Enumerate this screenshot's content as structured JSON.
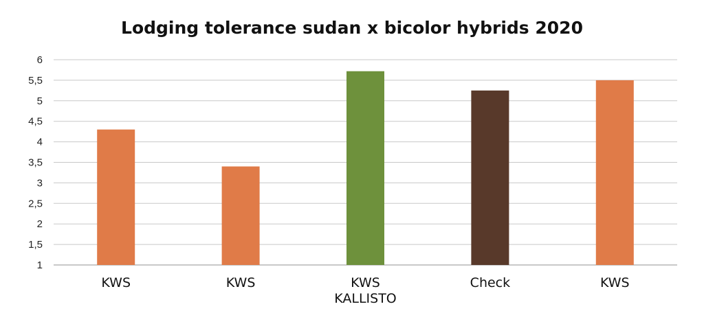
{
  "chart_data": {
    "type": "bar",
    "title": "Lodging tolerance sudan x bicolor hybrids 2020",
    "xlabel": "",
    "ylabel": "",
    "categories": [
      [
        "KWS"
      ],
      [
        "KWS"
      ],
      [
        "KWS",
        "KALLISTO"
      ],
      [
        "Check"
      ],
      [
        "KWS"
      ]
    ],
    "values": [
      4.3,
      3.4,
      5.72,
      5.25,
      5.5
    ],
    "bar_colors": [
      "#E07B48",
      "#E07B48",
      "#6E913C",
      "#58392A",
      "#E07B48"
    ],
    "ylim": [
      1,
      6
    ],
    "yticks": [
      "1",
      "1,5",
      "2",
      "2,5",
      "3",
      "3,5",
      "4",
      "4,5",
      "5",
      "5,5",
      "6"
    ],
    "ytick_values": [
      1,
      1.5,
      2,
      2.5,
      3,
      3.5,
      4,
      4.5,
      5,
      5.5,
      6
    ],
    "grid": true,
    "legend": "none"
  }
}
